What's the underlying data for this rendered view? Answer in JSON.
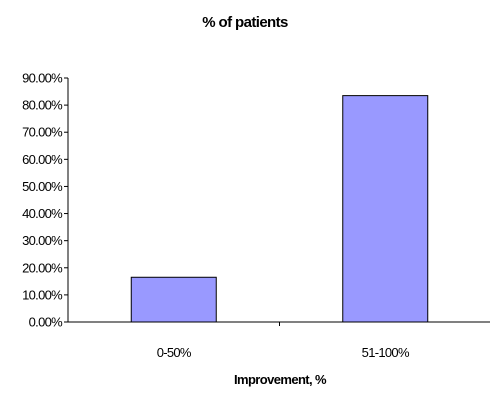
{
  "chart_data": {
    "type": "bar",
    "title": "% of patients",
    "xlabel": "Improvement, %",
    "ylabel": "",
    "categories": [
      "0-50%",
      "51-100%"
    ],
    "values": [
      16.5,
      83.5
    ],
    "ylim": [
      0,
      90
    ],
    "y_ticks": [
      "0.00%",
      "10.00%",
      "20.00%",
      "30.00%",
      "40.00%",
      "50.00%",
      "60.00%",
      "70.00%",
      "80.00%",
      "90.00%"
    ],
    "grid": false,
    "legend": "none",
    "colors": {
      "bar_fill": "#9999ff",
      "bar_stroke": "#000000",
      "axis": "#000000",
      "background": "#ffffff"
    }
  }
}
